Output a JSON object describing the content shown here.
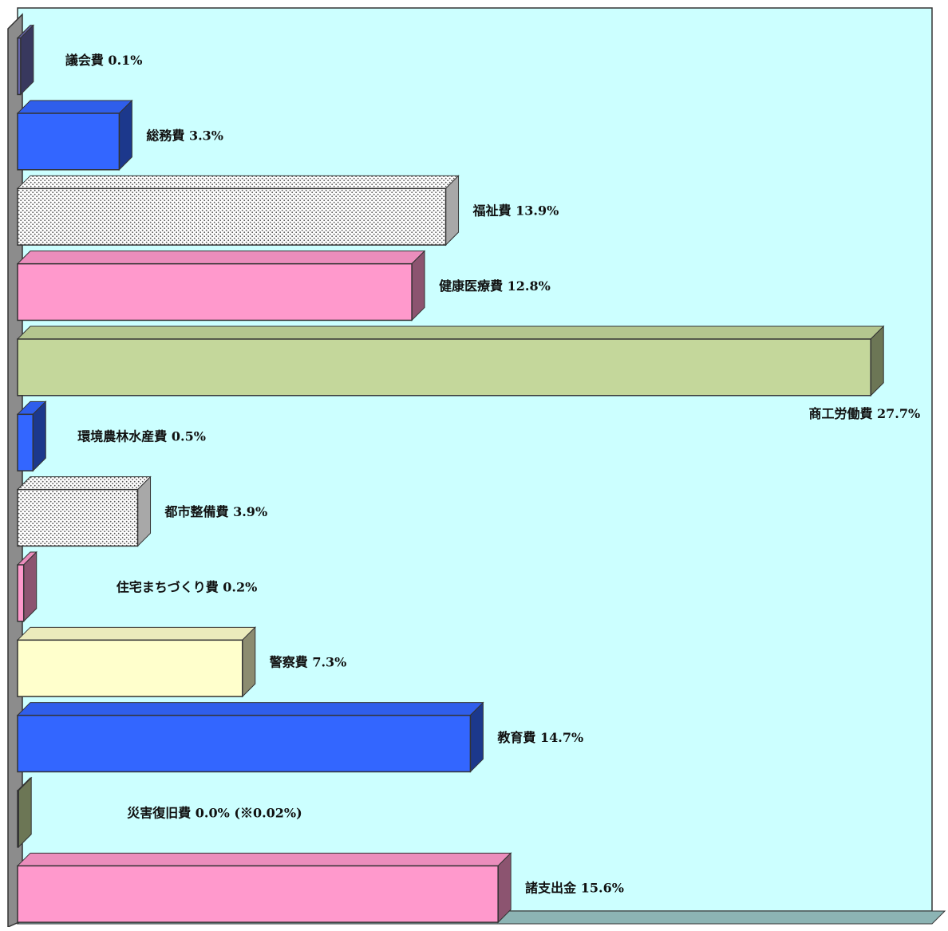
{
  "colors": {
    "plot_background": "#ccffff",
    "plot_floor": "#8cb4b4",
    "left_wall": "#8c8c8c",
    "outline": "#333333"
  },
  "chart_data": {
    "type": "bar",
    "orientation": "horizontal",
    "style": "3d",
    "title": "",
    "xlabel": "",
    "ylabel": "",
    "xlim": [
      0,
      27.7
    ],
    "grid": false,
    "legend": "none",
    "categories": [
      "議会費 0.1%",
      "総務費 3.3%",
      "福祉費 13.9%",
      "健康医療費 12.8%",
      "商工労働費 27.7%",
      "環境農林水産費 0.5%",
      "都市整備費 3.9%",
      "住宅まちづくり費 0.2%",
      "警察費 7.3%",
      "教育費 14.7%",
      "災害復旧費 0.0% (※0.02%)",
      "諸支出金 15.6%"
    ],
    "values": [
      0.1,
      3.3,
      13.9,
      12.8,
      27.7,
      0.5,
      3.9,
      0.2,
      7.3,
      14.7,
      0.02,
      15.6
    ],
    "bar_colors": [
      "#6666aa",
      "#3366ff",
      "#ffffff",
      "#ff99cc",
      "#c4d79b",
      "#3366ff",
      "#ffffff",
      "#ff99cc",
      "#ffffcc",
      "#3366ff",
      "#c4d79b",
      "#ff99cc"
    ],
    "bar_patterns": [
      "solid",
      "solid",
      "dots",
      "solid",
      "solid",
      "solid",
      "dots",
      "solid",
      "solid",
      "solid",
      "solid",
      "solid"
    ]
  }
}
